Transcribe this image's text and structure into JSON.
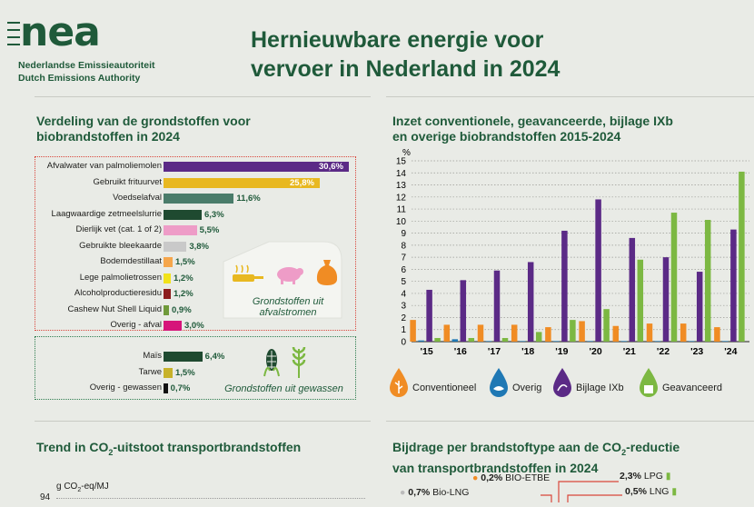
{
  "header": {
    "logo_text": "nea",
    "logo_line1": "Nederlandse Emissieautoriteit",
    "logo_line2": "Dutch Emissions Authority",
    "title_line1": "Hernieuwbare energie voor",
    "title_line2": "vervoer in Nederland in 2024"
  },
  "left_panel": {
    "title_line1": "Verdeling van de grondstoffen voor",
    "title_line2": "biobrandstoffen in 2024",
    "waste_caption_line1": "Grondstoffen uit",
    "waste_caption_line2": "afvalstromen",
    "crops_caption": "Grondstoffen uit gewassen"
  },
  "right_panel": {
    "title_line1": "Inzet conventionele, geavanceerde, bijlage IXb",
    "title_line2": "en overige biobrandstoffen 2015-2024",
    "y_unit": "%"
  },
  "bottom_left": {
    "title_pre": "Trend in CO",
    "title_sub": "2",
    "title_post": "-uitstoot transportbrandstoffen",
    "y_unit_pre": "g CO",
    "y_unit_sub": "2",
    "y_unit_post": "-eq/MJ",
    "y_top_tick": "94"
  },
  "bottom_right": {
    "title_line1_pre": "Bijdrage per brandstoftype aan de CO",
    "title_line1_sub": "2",
    "title_line1_post": "-reductie",
    "title_line2": "van transportbrandstoffen in 2024",
    "items": [
      {
        "value": "0,2%",
        "label": "BIO-ETBE"
      },
      {
        "value": "2,3%",
        "label": "LPG"
      },
      {
        "value": "0,7%",
        "label": "Bio-LNG"
      },
      {
        "value": "0,5%",
        "label": "LNG"
      }
    ]
  },
  "colors": {
    "dark_green": "#1f5a3a",
    "purple": "#5b2a86",
    "light_green": "#7cb842",
    "orange": "#f08c24",
    "blue": "#1f78b4",
    "red_dotted": "#d9463b",
    "green_dotted": "#2e7d4f"
  },
  "chart_data": [
    {
      "type": "bar",
      "orientation": "horizontal",
      "title": "Verdeling van de grondstoffen voor biobrandstoffen in 2024",
      "groups": [
        {
          "name": "Grondstoffen uit afvalstromen",
          "items": [
            {
              "label": "Afvalwater van palmoliemolen",
              "value": 30.6,
              "display": "30,6%",
              "color": "#5b2a86"
            },
            {
              "label": "Gebruikt frituurvet",
              "value": 25.8,
              "display": "25,8%",
              "color": "#e8b820"
            },
            {
              "label": "Voedselafval",
              "value": 11.6,
              "display": "11,6%",
              "color": "#4a7c6a"
            },
            {
              "label": "Laagwaardige zetmeelslurrie",
              "value": 6.3,
              "display": "6,3%",
              "color": "#1f4a30"
            },
            {
              "label": "Dierlijk vet (cat. 1 of 2)",
              "value": 5.5,
              "display": "5,5%",
              "color": "#ee9cc7"
            },
            {
              "label": "Gebruikte bleekaarde",
              "value": 3.8,
              "display": "3,8%",
              "color": "#c9c9c9"
            },
            {
              "label": "Bodemdestillaat",
              "value": 1.5,
              "display": "1,5%",
              "color": "#f5a64b"
            },
            {
              "label": "Lege palmolietrossen",
              "value": 1.2,
              "display": "1,2%",
              "color": "#f1e21b"
            },
            {
              "label": "Alcoholproductieresidu",
              "value": 1.2,
              "display": "1,2%",
              "color": "#8c1d1d"
            },
            {
              "label": "Cashew Nut Shell Liquid",
              "value": 0.9,
              "display": "0,9%",
              "color": "#6f9a3a"
            },
            {
              "label": "Overig - afval",
              "value": 3.0,
              "display": "3,0%",
              "color": "#d6157a"
            }
          ]
        },
        {
          "name": "Grondstoffen uit gewassen",
          "items": [
            {
              "label": "Maïs",
              "value": 6.4,
              "display": "6,4%",
              "color": "#1f4a30"
            },
            {
              "label": "Tarwe",
              "value": 1.5,
              "display": "1,5%",
              "color": "#c7b22a"
            },
            {
              "label": "Overig - gewassen",
              "value": 0.7,
              "display": "0,7%",
              "color": "#111111"
            }
          ]
        }
      ]
    },
    {
      "type": "bar",
      "title": "Inzet conventionele, geavanceerde, bijlage IXb en overige biobrandstoffen 2015-2024",
      "ylabel": "%",
      "ylim": [
        0,
        15
      ],
      "categories": [
        "'15",
        "'16",
        "'17",
        "'18",
        "'19",
        "'20",
        "'21",
        "'22",
        "'23",
        "'24"
      ],
      "series": [
        {
          "name": "Conventioneel",
          "color": "#f08c24",
          "values": [
            1.8,
            1.4,
            1.4,
            1.4,
            1.2,
            1.7,
            1.3,
            1.5,
            1.5,
            1.2
          ]
        },
        {
          "name": "Overig",
          "color": "#1f78b4",
          "values": [
            0.1,
            0.2,
            0.05,
            0.05,
            0.05,
            0.05,
            0.05,
            0.05,
            0.05,
            0.05
          ]
        },
        {
          "name": "Bijlage IXb",
          "color": "#5b2a86",
          "values": [
            4.3,
            5.1,
            5.9,
            6.6,
            9.2,
            11.8,
            8.6,
            7.0,
            5.8,
            9.3
          ]
        },
        {
          "name": "Geavanceerd",
          "color": "#7cb842",
          "values": [
            0.3,
            0.3,
            0.3,
            0.8,
            1.8,
            2.7,
            6.8,
            10.7,
            10.1,
            14.1
          ]
        }
      ]
    }
  ]
}
